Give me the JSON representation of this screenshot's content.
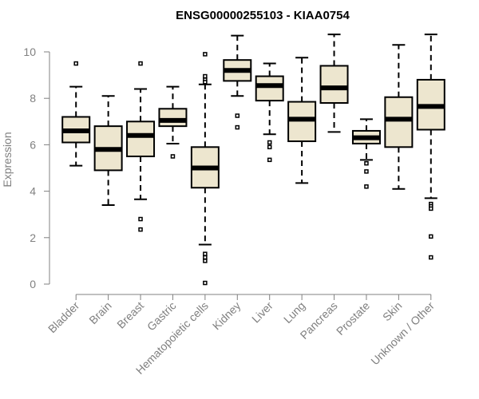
{
  "chart_data": {
    "type": "boxplot",
    "title": "ENSG00000255103 - KIAA0754",
    "xlabel": "",
    "ylabel": "Expression",
    "ylim": [
      0,
      10.5
    ],
    "yticks": [
      0,
      2,
      4,
      6,
      8,
      10
    ],
    "categories": [
      "Bladder",
      "Brain",
      "Breast",
      "Gastric",
      "Hematopoietic cells",
      "Kidney",
      "Liver",
      "Lung",
      "Pancreas",
      "Prostate",
      "Skin",
      "Unknown / Other"
    ],
    "boxes": [
      {
        "name": "Bladder",
        "whisker_low": 5.1,
        "q1": 6.1,
        "median": 6.6,
        "q3": 7.2,
        "whisker_high": 8.5,
        "outliers": [
          9.5
        ]
      },
      {
        "name": "Brain",
        "whisker_low": 3.4,
        "q1": 4.9,
        "median": 5.8,
        "q3": 6.8,
        "whisker_high": 8.1,
        "outliers": []
      },
      {
        "name": "Breast",
        "whisker_low": 3.65,
        "q1": 5.5,
        "median": 6.4,
        "q3": 7.0,
        "whisker_high": 8.4,
        "outliers": [
          9.5,
          2.8,
          2.35
        ]
      },
      {
        "name": "Gastric",
        "whisker_low": 6.05,
        "q1": 6.8,
        "median": 7.05,
        "q3": 7.55,
        "whisker_high": 8.5,
        "outliers": [
          5.5
        ]
      },
      {
        "name": "Hematopoietic cells",
        "whisker_low": 1.7,
        "q1": 4.15,
        "median": 5.0,
        "q3": 5.9,
        "whisker_high": 8.6,
        "outliers": [
          9.9,
          8.95,
          8.8,
          8.7,
          1.3,
          1.15,
          1.0,
          0.05
        ]
      },
      {
        "name": "Kidney",
        "whisker_low": 8.1,
        "q1": 8.75,
        "median": 9.2,
        "q3": 9.65,
        "whisker_high": 10.7,
        "outliers": [
          7.25,
          6.75
        ]
      },
      {
        "name": "Liver",
        "whisker_low": 6.45,
        "q1": 7.9,
        "median": 8.55,
        "q3": 8.95,
        "whisker_high": 9.5,
        "outliers": [
          6.1,
          5.9,
          5.35
        ]
      },
      {
        "name": "Lung",
        "whisker_low": 4.35,
        "q1": 6.15,
        "median": 7.1,
        "q3": 7.85,
        "whisker_high": 9.75,
        "outliers": []
      },
      {
        "name": "Pancreas",
        "whisker_low": 6.55,
        "q1": 7.8,
        "median": 8.45,
        "q3": 9.4,
        "whisker_high": 10.75,
        "outliers": []
      },
      {
        "name": "Prostate",
        "whisker_low": 5.35,
        "q1": 6.05,
        "median": 6.3,
        "q3": 6.6,
        "whisker_high": 7.1,
        "outliers": [
          5.2,
          4.85,
          4.2
        ]
      },
      {
        "name": "Skin",
        "whisker_low": 4.1,
        "q1": 5.9,
        "median": 7.1,
        "q3": 8.05,
        "whisker_high": 10.3,
        "outliers": []
      },
      {
        "name": "Unknown / Other",
        "whisker_low": 3.7,
        "q1": 6.65,
        "median": 7.65,
        "q3": 8.8,
        "whisker_high": 10.75,
        "outliers": [
          3.45,
          3.35,
          3.25,
          2.05,
          1.15
        ]
      }
    ],
    "colors": {
      "box_fill": "#ede6cf",
      "box_stroke": "#000000",
      "axis": "#808080",
      "text": "#808080",
      "title": "#000000"
    }
  }
}
